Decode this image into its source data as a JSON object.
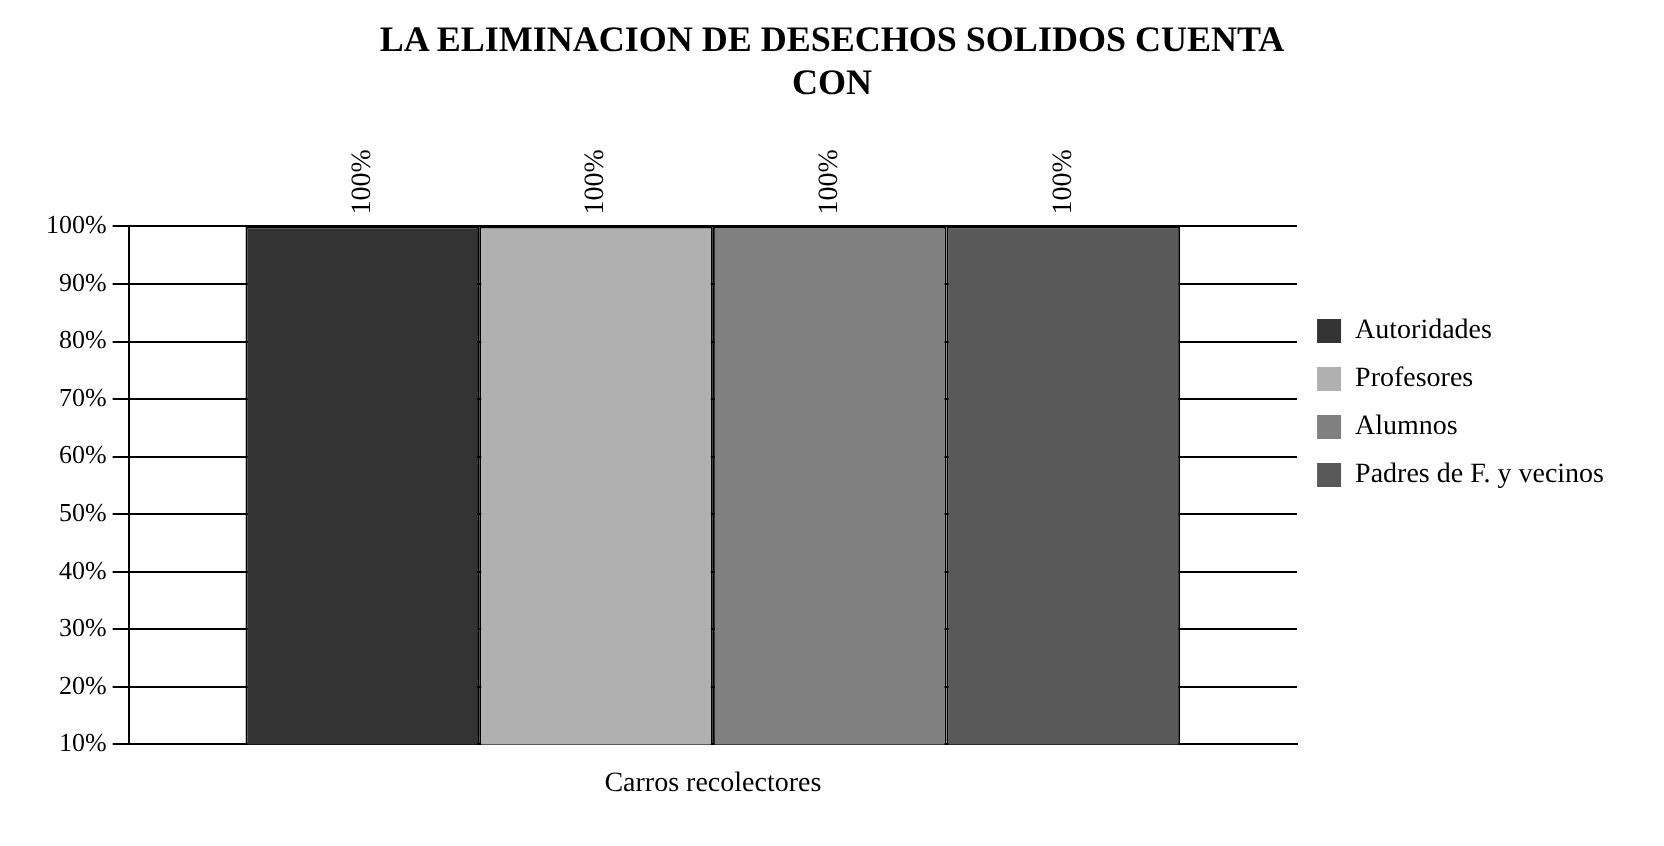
{
  "chart_data": {
    "type": "bar",
    "title": "LA ELIMINACION DE DESECHOS SOLIDOS CUENTA CON",
    "categories": [
      "Carros recolectores"
    ],
    "series": [
      {
        "name": "Autoridades",
        "color": "#333333",
        "values": [
          100
        ],
        "value_labels": [
          "100%"
        ]
      },
      {
        "name": "Profesores",
        "color": "#b0b0b0",
        "values": [
          100
        ],
        "value_labels": [
          "100%"
        ]
      },
      {
        "name": "Alumnos",
        "color": "#808080",
        "values": [
          100
        ],
        "value_labels": [
          "100%"
        ]
      },
      {
        "name": "Padres de F. y vecinos",
        "color": "#595959",
        "values": [
          100
        ],
        "value_labels": [
          "100%"
        ]
      }
    ],
    "ylim": [
      10,
      100
    ],
    "yticks": [
      {
        "value": 10,
        "label": "10%"
      },
      {
        "value": 20,
        "label": "20%"
      },
      {
        "value": 30,
        "label": "30%"
      },
      {
        "value": 40,
        "label": "40%"
      },
      {
        "value": 50,
        "label": "50%"
      },
      {
        "value": 60,
        "label": "60%"
      },
      {
        "value": 70,
        "label": "70%"
      },
      {
        "value": 80,
        "label": "80%"
      },
      {
        "value": 90,
        "label": "90%"
      },
      {
        "value": 100,
        "label": "100%"
      }
    ],
    "grid": "y",
    "legend": "right"
  }
}
